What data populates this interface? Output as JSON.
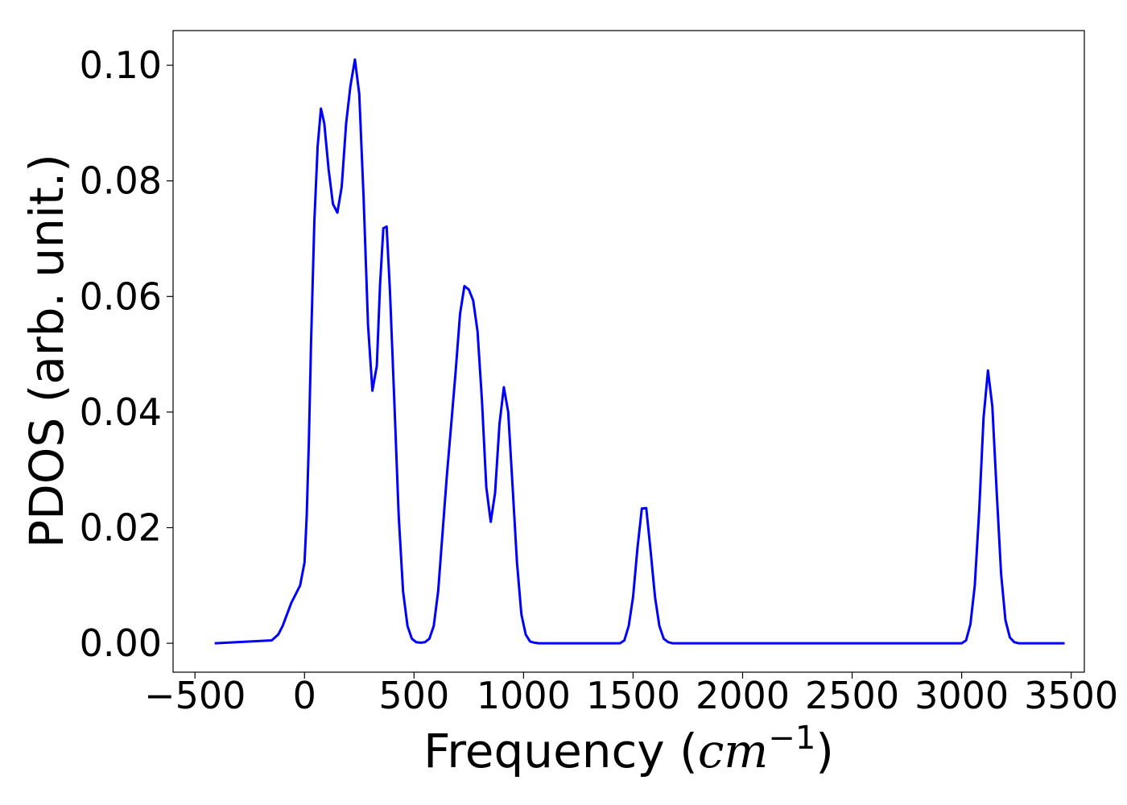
{
  "chart_data": {
    "type": "line",
    "title": "",
    "xlabel": "Frequency",
    "xlabel_unit": {
      "open": " (",
      "base": "cm",
      "exponent": "−1",
      "close": ")"
    },
    "ylabel": "PDOS (arb. unit.)",
    "xlim": [
      -600,
      3560
    ],
    "ylim": [
      -0.005,
      0.106
    ],
    "xticks": [
      -500,
      0,
      500,
      1000,
      1500,
      2000,
      2500,
      3000,
      3500
    ],
    "xtick_labels": [
      "−500",
      "0",
      "500",
      "1000",
      "1500",
      "2000",
      "2500",
      "3000",
      "3500"
    ],
    "yticks": [
      0.0,
      0.02,
      0.04,
      0.06,
      0.08,
      0.1
    ],
    "ytick_labels": [
      "0.00",
      "0.02",
      "0.04",
      "0.06",
      "0.08",
      "0.10"
    ],
    "grid": false,
    "line_color": "#0000ff",
    "series": [
      {
        "x": [
          -410,
          -150,
          -120,
          -100,
          -80,
          -60,
          -40,
          -20,
          0,
          10,
          20,
          30,
          45,
          60,
          75,
          90,
          110,
          130,
          150,
          170,
          190,
          210,
          230,
          250,
          270,
          290,
          310,
          330,
          345,
          360,
          375,
          390,
          410,
          430,
          450,
          470,
          490,
          510,
          530,
          550,
          570,
          590,
          610,
          630,
          650,
          670,
          690,
          710,
          730,
          750,
          770,
          790,
          810,
          830,
          850,
          870,
          890,
          910,
          930,
          950,
          970,
          990,
          1010,
          1030,
          1050,
          1070,
          1100,
          1440,
          1460,
          1480,
          1500,
          1520,
          1540,
          1560,
          1580,
          1600,
          1620,
          1640,
          1660,
          1680,
          1720,
          3000,
          3020,
          3040,
          3060,
          3080,
          3100,
          3120,
          3140,
          3160,
          3180,
          3200,
          3220,
          3240,
          3260,
          3470
        ],
        "y": [
          0.0,
          0.0005,
          0.0015,
          0.003,
          0.005,
          0.007,
          0.0085,
          0.01,
          0.014,
          0.022,
          0.035,
          0.052,
          0.073,
          0.086,
          0.0925,
          0.09,
          0.082,
          0.076,
          0.0745,
          0.079,
          0.09,
          0.0965,
          0.101,
          0.095,
          0.077,
          0.055,
          0.0437,
          0.048,
          0.062,
          0.0718,
          0.0721,
          0.061,
          0.042,
          0.022,
          0.009,
          0.003,
          0.0008,
          0.0002,
          0.0001,
          0.0002,
          0.0008,
          0.003,
          0.009,
          0.019,
          0.029,
          0.038,
          0.047,
          0.057,
          0.0618,
          0.0612,
          0.0593,
          0.054,
          0.042,
          0.027,
          0.021,
          0.026,
          0.038,
          0.0443,
          0.04,
          0.027,
          0.014,
          0.005,
          0.0015,
          0.0003,
          0.0001,
          0.0,
          0.0,
          0.0,
          0.0005,
          0.003,
          0.008,
          0.0165,
          0.0233,
          0.0234,
          0.016,
          0.008,
          0.003,
          0.0008,
          0.0002,
          0.0,
          0.0,
          0.0,
          0.0005,
          0.0033,
          0.01,
          0.023,
          0.039,
          0.0472,
          0.041,
          0.026,
          0.012,
          0.004,
          0.001,
          0.0002,
          0.0,
          0.0
        ]
      }
    ]
  }
}
